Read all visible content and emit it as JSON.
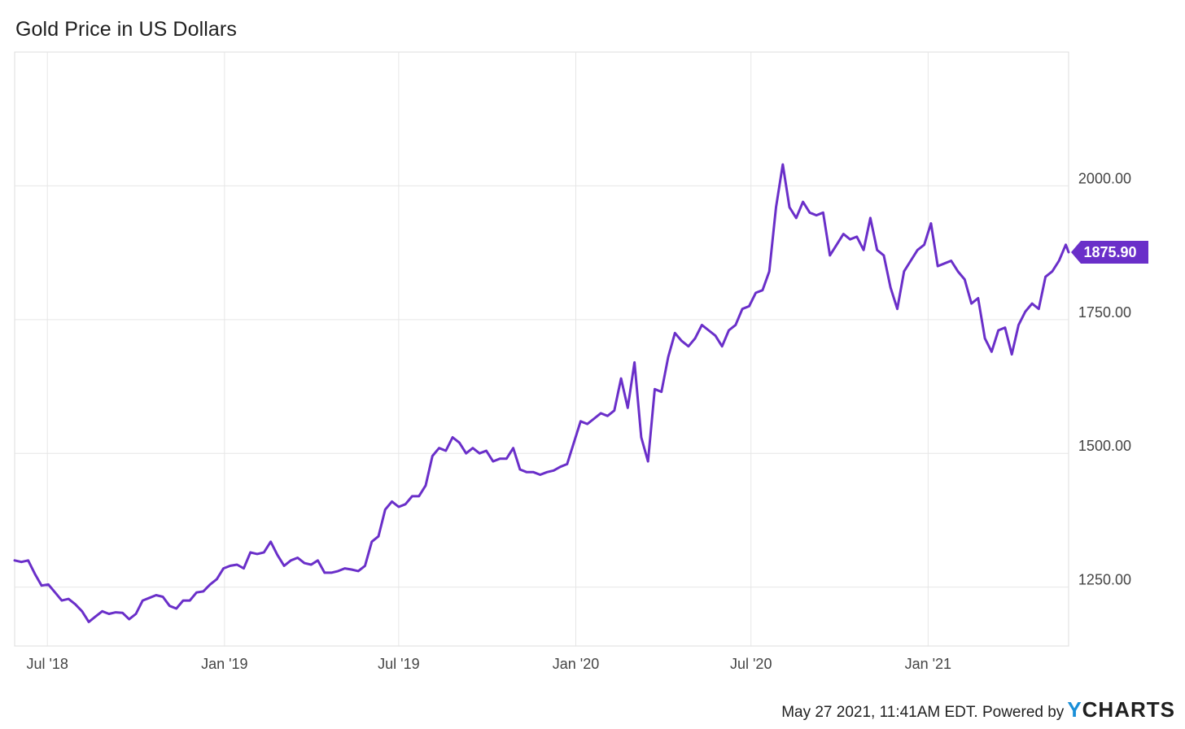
{
  "chart_data": {
    "type": "line",
    "title": "Gold Price in US Dollars",
    "xlabel": "",
    "ylabel": "",
    "x_range": [
      "2018-05-28",
      "2021-05-27"
    ],
    "ylim": [
      1140,
      2250
    ],
    "y_ticks": [
      1250,
      1500,
      1750,
      2000
    ],
    "y_tick_labels": [
      "1250.00",
      "1500.00",
      "1750.00",
      "2000.00"
    ],
    "x_ticks": [
      {
        "date": "2018-07-01",
        "label": "Jul '18"
      },
      {
        "date": "2019-01-01",
        "label": "Jan '19"
      },
      {
        "date": "2019-07-01",
        "label": "Jul '19"
      },
      {
        "date": "2020-01-01",
        "label": "Jan '20"
      },
      {
        "date": "2020-07-01",
        "label": "Jul '20"
      },
      {
        "date": "2021-01-01",
        "label": "Jan '21"
      }
    ],
    "grid": true,
    "line_color": "#6a2fc9",
    "series": [
      {
        "points": [
          [
            "2018-05-28",
            1300
          ],
          [
            "2018-06-04",
            1297
          ],
          [
            "2018-06-11",
            1300
          ],
          [
            "2018-06-18",
            1275
          ],
          [
            "2018-06-25",
            1253
          ],
          [
            "2018-07-02",
            1255
          ],
          [
            "2018-07-09",
            1240
          ],
          [
            "2018-07-16",
            1225
          ],
          [
            "2018-07-23",
            1228
          ],
          [
            "2018-07-30",
            1218
          ],
          [
            "2018-08-06",
            1205
          ],
          [
            "2018-08-13",
            1185
          ],
          [
            "2018-08-20",
            1195
          ],
          [
            "2018-08-27",
            1205
          ],
          [
            "2018-09-03",
            1200
          ],
          [
            "2018-09-10",
            1203
          ],
          [
            "2018-09-17",
            1202
          ],
          [
            "2018-09-24",
            1190
          ],
          [
            "2018-10-01",
            1200
          ],
          [
            "2018-10-08",
            1225
          ],
          [
            "2018-10-15",
            1230
          ],
          [
            "2018-10-22",
            1235
          ],
          [
            "2018-10-29",
            1232
          ],
          [
            "2018-11-05",
            1215
          ],
          [
            "2018-11-12",
            1210
          ],
          [
            "2018-11-19",
            1225
          ],
          [
            "2018-11-26",
            1225
          ],
          [
            "2018-12-03",
            1240
          ],
          [
            "2018-12-10",
            1242
          ],
          [
            "2018-12-17",
            1255
          ],
          [
            "2018-12-24",
            1265
          ],
          [
            "2018-12-31",
            1285
          ],
          [
            "2019-01-07",
            1290
          ],
          [
            "2019-01-14",
            1292
          ],
          [
            "2019-01-21",
            1285
          ],
          [
            "2019-01-28",
            1315
          ],
          [
            "2019-02-04",
            1312
          ],
          [
            "2019-02-11",
            1315
          ],
          [
            "2019-02-18",
            1335
          ],
          [
            "2019-02-25",
            1310
          ],
          [
            "2019-03-04",
            1290
          ],
          [
            "2019-03-11",
            1300
          ],
          [
            "2019-03-18",
            1305
          ],
          [
            "2019-03-25",
            1295
          ],
          [
            "2019-04-01",
            1292
          ],
          [
            "2019-04-08",
            1300
          ],
          [
            "2019-04-15",
            1277
          ],
          [
            "2019-04-22",
            1277
          ],
          [
            "2019-04-29",
            1280
          ],
          [
            "2019-05-06",
            1285
          ],
          [
            "2019-05-13",
            1283
          ],
          [
            "2019-05-20",
            1280
          ],
          [
            "2019-05-27",
            1290
          ],
          [
            "2019-06-03",
            1335
          ],
          [
            "2019-06-10",
            1345
          ],
          [
            "2019-06-17",
            1395
          ],
          [
            "2019-06-24",
            1410
          ],
          [
            "2019-07-01",
            1400
          ],
          [
            "2019-07-08",
            1405
          ],
          [
            "2019-07-15",
            1420
          ],
          [
            "2019-07-22",
            1420
          ],
          [
            "2019-07-29",
            1440
          ],
          [
            "2019-08-05",
            1495
          ],
          [
            "2019-08-12",
            1510
          ],
          [
            "2019-08-19",
            1505
          ],
          [
            "2019-08-26",
            1530
          ],
          [
            "2019-09-02",
            1520
          ],
          [
            "2019-09-09",
            1500
          ],
          [
            "2019-09-16",
            1510
          ],
          [
            "2019-09-23",
            1500
          ],
          [
            "2019-09-30",
            1505
          ],
          [
            "2019-10-07",
            1485
          ],
          [
            "2019-10-14",
            1490
          ],
          [
            "2019-10-21",
            1490
          ],
          [
            "2019-10-28",
            1510
          ],
          [
            "2019-11-04",
            1470
          ],
          [
            "2019-11-11",
            1465
          ],
          [
            "2019-11-18",
            1465
          ],
          [
            "2019-11-25",
            1460
          ],
          [
            "2019-12-02",
            1465
          ],
          [
            "2019-12-09",
            1468
          ],
          [
            "2019-12-16",
            1475
          ],
          [
            "2019-12-23",
            1480
          ],
          [
            "2019-12-30",
            1520
          ],
          [
            "2020-01-06",
            1560
          ],
          [
            "2020-01-13",
            1555
          ],
          [
            "2020-01-20",
            1565
          ],
          [
            "2020-01-27",
            1575
          ],
          [
            "2020-02-03",
            1570
          ],
          [
            "2020-02-10",
            1580
          ],
          [
            "2020-02-17",
            1640
          ],
          [
            "2020-02-24",
            1585
          ],
          [
            "2020-03-02",
            1670
          ],
          [
            "2020-03-09",
            1530
          ],
          [
            "2020-03-16",
            1485
          ],
          [
            "2020-03-23",
            1620
          ],
          [
            "2020-03-30",
            1615
          ],
          [
            "2020-04-06",
            1680
          ],
          [
            "2020-04-13",
            1725
          ],
          [
            "2020-04-20",
            1710
          ],
          [
            "2020-04-27",
            1700
          ],
          [
            "2020-05-04",
            1715
          ],
          [
            "2020-05-11",
            1740
          ],
          [
            "2020-05-18",
            1730
          ],
          [
            "2020-05-25",
            1720
          ],
          [
            "2020-06-01",
            1700
          ],
          [
            "2020-06-08",
            1730
          ],
          [
            "2020-06-15",
            1740
          ],
          [
            "2020-06-22",
            1770
          ],
          [
            "2020-06-29",
            1775
          ],
          [
            "2020-07-06",
            1800
          ],
          [
            "2020-07-13",
            1805
          ],
          [
            "2020-07-20",
            1840
          ],
          [
            "2020-07-27",
            1960
          ],
          [
            "2020-08-03",
            2040
          ],
          [
            "2020-08-10",
            1960
          ],
          [
            "2020-08-17",
            1940
          ],
          [
            "2020-08-24",
            1970
          ],
          [
            "2020-08-31",
            1950
          ],
          [
            "2020-09-07",
            1945
          ],
          [
            "2020-09-14",
            1950
          ],
          [
            "2020-09-21",
            1870
          ],
          [
            "2020-09-28",
            1890
          ],
          [
            "2020-10-05",
            1910
          ],
          [
            "2020-10-12",
            1900
          ],
          [
            "2020-10-19",
            1905
          ],
          [
            "2020-10-26",
            1880
          ],
          [
            "2020-11-02",
            1940
          ],
          [
            "2020-11-09",
            1880
          ],
          [
            "2020-11-16",
            1870
          ],
          [
            "2020-11-23",
            1810
          ],
          [
            "2020-11-30",
            1770
          ],
          [
            "2020-12-07",
            1840
          ],
          [
            "2020-12-14",
            1860
          ],
          [
            "2020-12-21",
            1880
          ],
          [
            "2020-12-28",
            1890
          ],
          [
            "2021-01-04",
            1930
          ],
          [
            "2021-01-11",
            1850
          ],
          [
            "2021-01-18",
            1855
          ],
          [
            "2021-01-25",
            1860
          ],
          [
            "2021-02-01",
            1840
          ],
          [
            "2021-02-08",
            1825
          ],
          [
            "2021-02-15",
            1780
          ],
          [
            "2021-02-22",
            1790
          ],
          [
            "2021-03-01",
            1715
          ],
          [
            "2021-03-08",
            1690
          ],
          [
            "2021-03-15",
            1730
          ],
          [
            "2021-03-22",
            1735
          ],
          [
            "2021-03-29",
            1685
          ],
          [
            "2021-04-05",
            1740
          ],
          [
            "2021-04-12",
            1765
          ],
          [
            "2021-04-19",
            1780
          ],
          [
            "2021-04-26",
            1770
          ],
          [
            "2021-05-03",
            1830
          ],
          [
            "2021-05-10",
            1840
          ],
          [
            "2021-05-17",
            1860
          ],
          [
            "2021-05-24",
            1890
          ],
          [
            "2021-05-27",
            1875.9
          ]
        ]
      }
    ],
    "last_value_label": "1875.90",
    "last_value_color": "#6a2fc9"
  },
  "footer": {
    "text": "May 27 2021, 11:41AM EDT. Powered by",
    "brand_y": "Y",
    "brand_rest": "CHARTS"
  }
}
